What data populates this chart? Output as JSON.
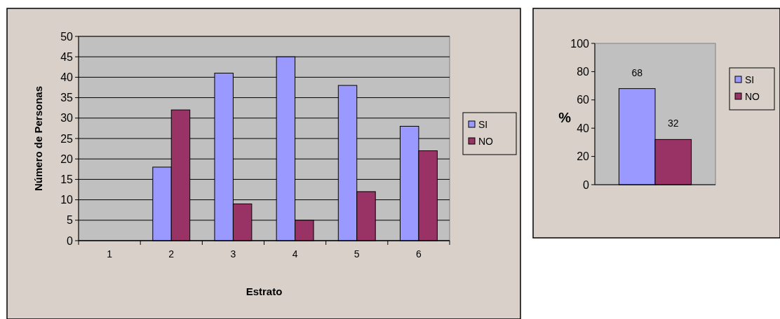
{
  "chart_data": [
    {
      "type": "bar",
      "xlabel": "Estrato",
      "ylabel": "Número de Personas",
      "categories": [
        "1",
        "2",
        "3",
        "4",
        "5",
        "6"
      ],
      "series": [
        {
          "name": "SI",
          "color": "#9999ff",
          "values": [
            0,
            18,
            41,
            45,
            38,
            28
          ]
        },
        {
          "name": "NO",
          "color": "#993366",
          "values": [
            0,
            32,
            9,
            5,
            12,
            22
          ]
        }
      ],
      "ylim": [
        0,
        50
      ],
      "yticks": [
        0,
        5,
        10,
        15,
        20,
        25,
        30,
        35,
        40,
        45,
        50
      ],
      "grid": "y",
      "legend": "right"
    },
    {
      "type": "bar",
      "ylabel": "%",
      "categories": [
        null
      ],
      "series": [
        {
          "name": "SI",
          "color": "#9999ff",
          "values": [
            68
          ]
        },
        {
          "name": "NO",
          "color": "#993366",
          "values": [
            32
          ]
        }
      ],
      "ylim": [
        0,
        100
      ],
      "yticks": [
        0,
        20,
        40,
        60,
        80,
        100
      ],
      "data_labels": true,
      "legend": "right"
    }
  ]
}
